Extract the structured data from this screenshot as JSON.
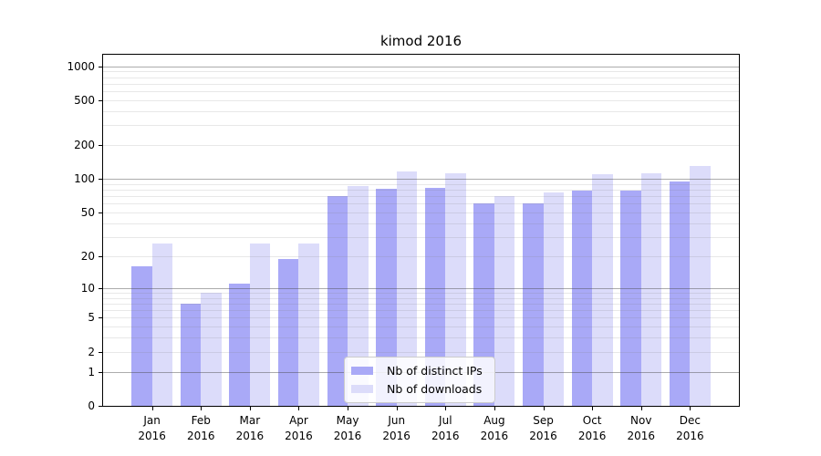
{
  "chart_data": {
    "type": "bar",
    "title": "kimod 2016",
    "categories": [
      "Jan 2016",
      "Feb 2016",
      "Mar 2016",
      "Apr 2016",
      "May 2016",
      "Jun 2016",
      "Jul 2016",
      "Aug 2016",
      "Sep 2016",
      "Oct 2016",
      "Nov 2016",
      "Dec 2016"
    ],
    "months": [
      "Jan",
      "Feb",
      "Mar",
      "Apr",
      "May",
      "Jun",
      "Jul",
      "Aug",
      "Sep",
      "Oct",
      "Nov",
      "Dec"
    ],
    "year": "2016",
    "series": [
      {
        "name": "Nb of distinct IPs",
        "color": "#a9a9f7",
        "values": [
          16,
          7,
          11,
          19,
          71,
          82,
          84,
          61,
          60,
          79,
          79,
          95
        ]
      },
      {
        "name": "Nb of downloads",
        "color": "#dcdcfa",
        "values": [
          26,
          9,
          26,
          26,
          87,
          116,
          113,
          70,
          76,
          111,
          113,
          130
        ]
      }
    ],
    "y_ticks": [
      0,
      1,
      2,
      5,
      10,
      20,
      50,
      100,
      200,
      500,
      1000
    ],
    "y_scale": "log10(1+x)",
    "ylim": [
      0,
      1265
    ],
    "grid": "horizontal; major lines at 1,10,100,1000; minor at 2-9 multiples",
    "legend_position": "lower center inside axes",
    "colors": {
      "spine": "#000000",
      "major_grid": "#b0b0b0",
      "minor_grid": "#e8e8e8"
    }
  }
}
